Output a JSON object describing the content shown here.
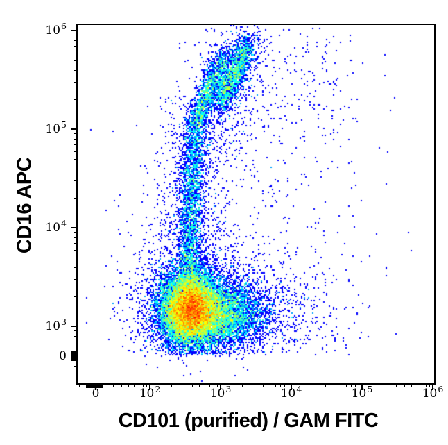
{
  "chart_data": {
    "type": "scatter",
    "subtype": "flow-cytometry-pseudocolor-density-plot",
    "title": "",
    "xlabel": "CD101 (purified) / GAM FITC",
    "ylabel": "CD16 APC",
    "x_axis": {
      "label": "CD101 (purified) / GAM FITC",
      "scale": "biexponential-log",
      "range": [
        0,
        1000000
      ],
      "zero_pileup_mark": true,
      "ticks": [
        {
          "text": "0",
          "log": null,
          "value": 0
        },
        {
          "base": "10",
          "exp": "2",
          "log": 2,
          "value": 100
        },
        {
          "base": "10",
          "exp": "3",
          "log": 3,
          "value": 1000
        },
        {
          "base": "10",
          "exp": "4",
          "log": 4,
          "value": 10000
        },
        {
          "base": "10",
          "exp": "5",
          "log": 5,
          "value": 100000
        },
        {
          "base": "10",
          "exp": "6",
          "log": 6,
          "value": 1000000
        }
      ]
    },
    "y_axis": {
      "label": "CD16 APC",
      "scale": "biexponential-log",
      "range": [
        0,
        1000000
      ],
      "zero_pileup_mark": true,
      "ticks": [
        {
          "base": "10",
          "exp": "6",
          "log": 6,
          "value": 1000000
        },
        {
          "base": "10",
          "exp": "5",
          "log": 5,
          "value": 100000
        },
        {
          "base": "10",
          "exp": "4",
          "log": 4,
          "value": 10000
        },
        {
          "base": "10",
          "exp": "3",
          "log": 3,
          "value": 1000
        },
        {
          "text": "0",
          "log": null,
          "value": 0
        }
      ]
    },
    "colormap": {
      "name": "jet",
      "single_event_color": "#0000ff",
      "mid_density_color": "#00ff66",
      "peak_density_color": "#ff0000",
      "density_scaling": "log"
    },
    "legend": null,
    "grid": false,
    "populations": [
      {
        "name": "main-dense-core",
        "kind": "gauss",
        "cx": 2.56,
        "cy": 3.18,
        "sx": 0.2,
        "sy": 0.185,
        "count": 12000
      },
      {
        "name": "main-right-tail",
        "kind": "gauss",
        "cx": 2.95,
        "cy": 3.12,
        "sx": 0.34,
        "sy": 0.16,
        "count": 5000
      },
      {
        "name": "main-halo",
        "kind": "gauss",
        "cx": 2.68,
        "cy": 3.2,
        "sx": 0.42,
        "sy": 0.33,
        "count": 2600
      },
      {
        "name": "right-spread",
        "kind": "gauss",
        "cx": 3.6,
        "cy": 3.15,
        "sx": 0.5,
        "sy": 0.25,
        "count": 520
      },
      {
        "name": "far-right-sparse",
        "kind": "gauss",
        "cx": 4.25,
        "cy": 3.3,
        "sx": 0.5,
        "sy": 0.45,
        "count": 110
      },
      {
        "name": "vertical-arm",
        "kind": "path",
        "points": [
          [
            2.55,
            3.45
          ],
          [
            2.58,
            4.1
          ],
          [
            2.62,
            4.7
          ],
          [
            2.64,
            5.02
          ]
        ],
        "width": 0.085,
        "count": 2300
      },
      {
        "name": "vertical-arm-halo",
        "kind": "path",
        "points": [
          [
            2.55,
            3.5
          ],
          [
            2.6,
            4.4
          ],
          [
            2.64,
            5.0
          ]
        ],
        "width": 0.27,
        "count": 700
      },
      {
        "name": "upper-arm-left",
        "kind": "path",
        "points": [
          [
            2.64,
            5.02
          ],
          [
            2.83,
            5.42
          ],
          [
            3.06,
            5.73
          ]
        ],
        "width": 0.07,
        "count": 1500
      },
      {
        "name": "upper-arm-right",
        "kind": "path",
        "points": [
          [
            3.0,
            5.26
          ],
          [
            3.2,
            5.55
          ],
          [
            3.38,
            5.85
          ]
        ],
        "width": 0.075,
        "count": 1700
      },
      {
        "name": "upper-arm-halo",
        "kind": "path",
        "points": [
          [
            2.78,
            4.9
          ],
          [
            3.1,
            5.5
          ],
          [
            3.45,
            5.95
          ]
        ],
        "width": 0.2,
        "count": 650
      },
      {
        "name": "top-spray",
        "kind": "gauss",
        "cx": 3.2,
        "cy": 5.35,
        "sx": 0.45,
        "sy": 0.5,
        "count": 260
      },
      {
        "name": "top-right-cluster",
        "kind": "gauss",
        "cx": 4.42,
        "cy": 5.45,
        "sx": 0.26,
        "sy": 0.3,
        "count": 85
      },
      {
        "name": "top-right-sparse",
        "kind": "gauss",
        "cx": 4.3,
        "cy": 5.0,
        "sx": 0.65,
        "sy": 0.75,
        "count": 90
      },
      {
        "name": "left-fringe",
        "kind": "gauss",
        "cx": 2.17,
        "cy": 3.35,
        "sx": 0.28,
        "sy": 0.5,
        "count": 230
      },
      {
        "name": "background-sparse",
        "kind": "gauss",
        "cx": 3.2,
        "cy": 4.1,
        "sx": 0.85,
        "sy": 0.85,
        "count": 300
      }
    ]
  }
}
